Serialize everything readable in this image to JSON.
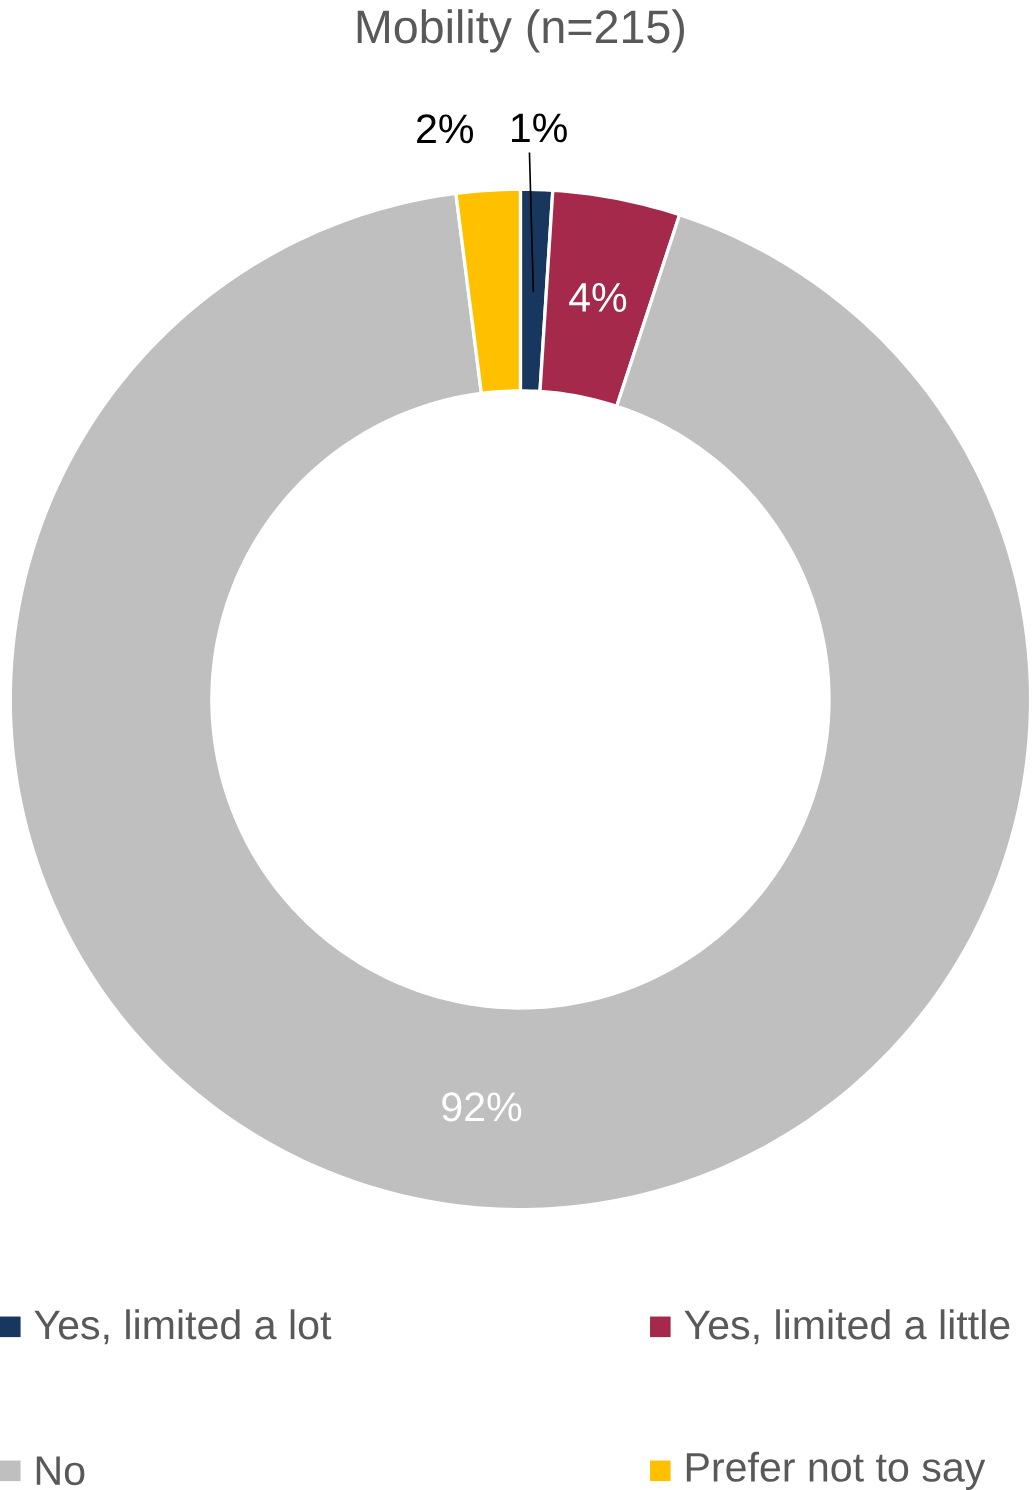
{
  "chart_data": {
    "type": "donut",
    "title": "Mobility (n=215)",
    "categories": [
      "Yes, limited a lot",
      "Yes, limited a little",
      "No",
      "Prefer not to say"
    ],
    "values": [
      1,
      4,
      92,
      2
    ],
    "value_labels": [
      "1%",
      "4%",
      "92%",
      "2%"
    ],
    "colors": [
      "#17375e",
      "#a5294a",
      "#bfbfbf",
      "#ffc000"
    ],
    "legend": "bottom"
  }
}
